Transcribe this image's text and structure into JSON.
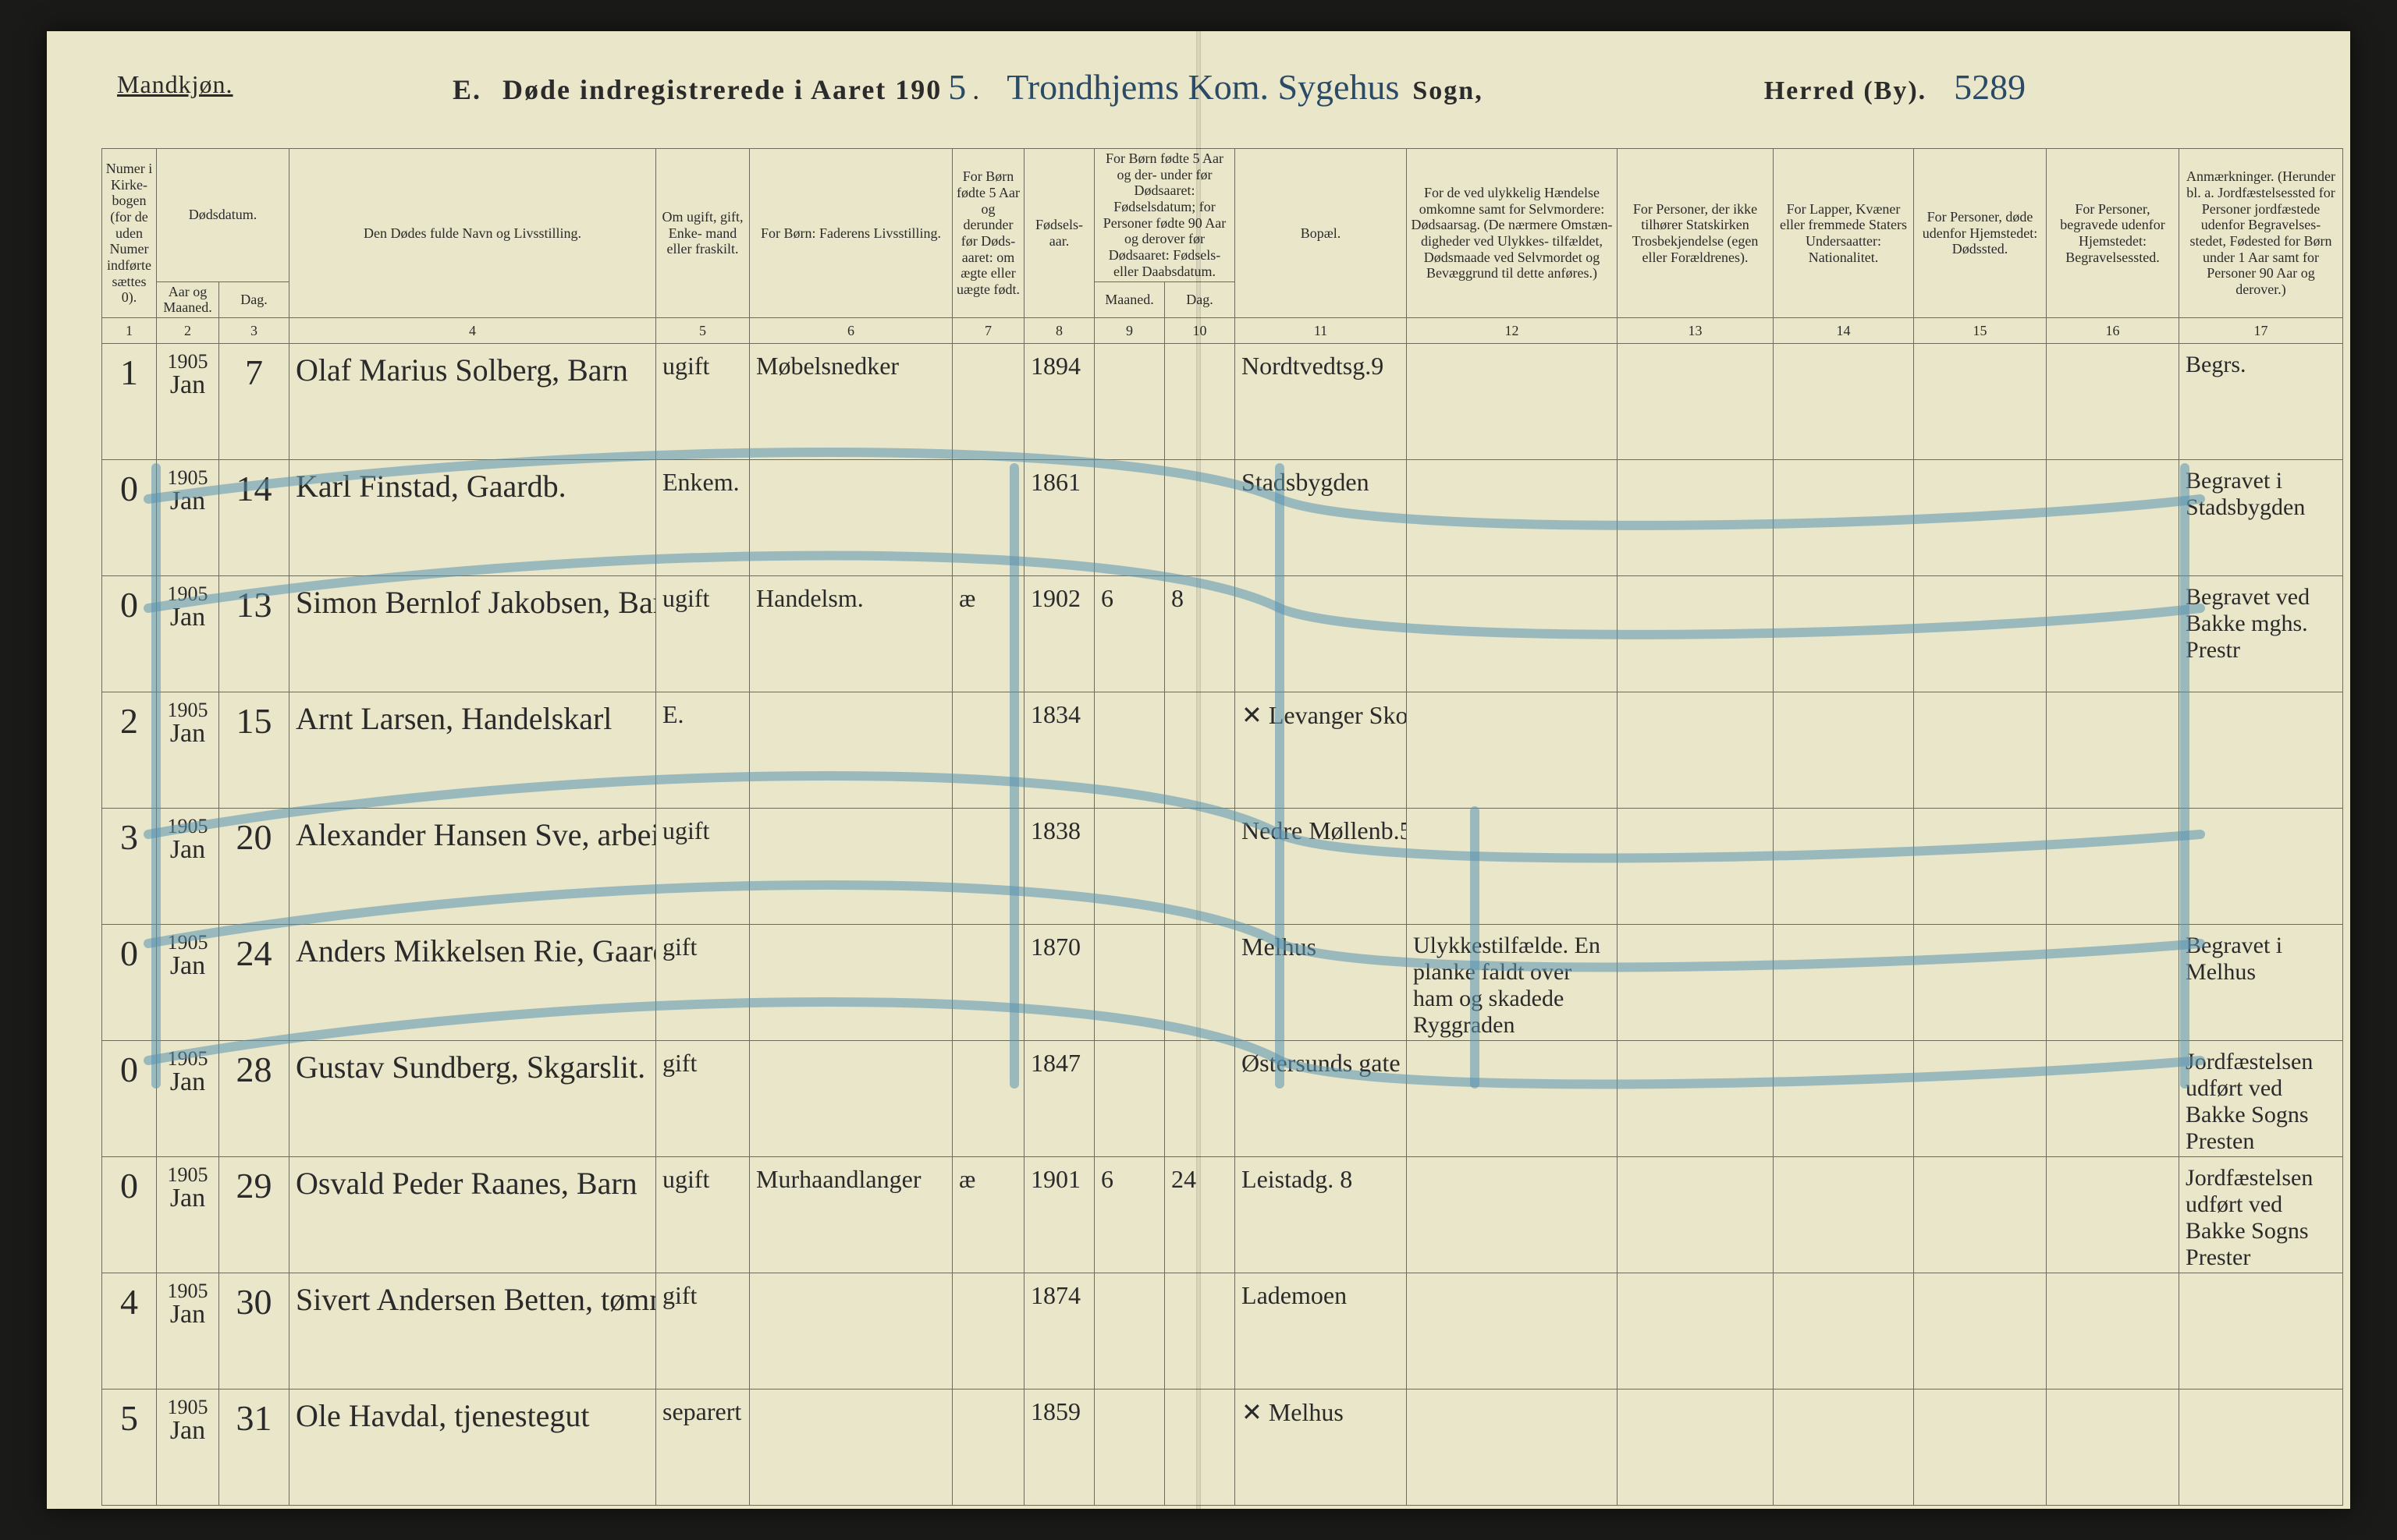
{
  "header": {
    "gender_label": "Mandkjøn.",
    "section_letter": "E.",
    "title_prefix": "Døde indregistrerede i Aaret 190",
    "year_suffix": "5",
    "sogn_handwritten": "Trondhjems Kom. Sygehus",
    "sogn_label": "Sogn,",
    "herred_label": "Herred (By).",
    "herred_handwritten": "5289"
  },
  "columns": {
    "c1": "Numer i Kirke-\nbogen\n(for de\nuden\nNumer\nindførte\nsættes\n0).",
    "c2_group": "Dødsdatum.",
    "c2": "Aar\nog\nMaaned.",
    "c3": "Dag.",
    "c4": "Den Dødes fulde Navn og Livsstilling.",
    "c5": "Om\nugift,\ngift,\nEnke-\nmand\neller\nfraskilt.",
    "c6": "For Børn:\nFaderens Livsstilling.",
    "c7": "For Børn\nfødte\n5 Aar og\nderunder\nfør Døds-\naaret:\nom ægte\neller\nuægte\nfødt.",
    "c8": "Fødsels-\naar.",
    "c9_group": "For Børn fødte\n5 Aar og der-\nunder før\nDødsaaret:\nFødselsdatum;\nfor Personer\nfødte 90 Aar\nog derover før\nDødsaaret:\nFødsels- eller\nDaabsdatum.",
    "c9": "Maaned.",
    "c10": "Dag.",
    "c11": "Bopæl.",
    "c12": "For de ved ulykkelig\nHændelse omkomne\nsamt for Selvmordere:\nDødsaarsag.\n(De nærmere Omstæn-\ndigheder ved Ulykkes-\ntilfældet, Dødsmaade ved\nSelvmordet og Bevæggrund\ntil dette anføres.)",
    "c13": "For Personer,\nder ikke tilhører\nStatskirken\nTrosbekjendelse\n(egen eller Forældrenes).",
    "c14": "For Lapper, Kvæner\neller fremmede\nStaters Undersaatter:\nNationalitet.",
    "c15": "For Personer, døde\nudenfor Hjemstedet:\nDødssted.",
    "c16": "For Personer, begravede\nudenfor Hjemstedet:\nBegravelsessted.",
    "c17": "Anmærkninger.\n(Herunder bl. a.\nJordfæstelsessted for\nPersoner jordfæstede\nudenfor Begravelses-\nstedet, Fødested for\nBørn under 1 Aar\nsamt for Personer\n90 Aar og derover.)"
  },
  "colnums": [
    "1",
    "2",
    "3",
    "4",
    "5",
    "6",
    "7",
    "8",
    "9",
    "10",
    "11",
    "12",
    "13",
    "14",
    "15",
    "16",
    "17"
  ],
  "rows": [
    {
      "num": "1",
      "year": "1905",
      "month": "Jan",
      "day": "7",
      "name": "Olaf Marius Solberg, Barn",
      "status": "ugift",
      "father": "Møbelsnedker",
      "legit": "",
      "birthyear": "1894",
      "bm": "",
      "bd": "",
      "bopael": "Nordtvedtsg.9",
      "cause": "",
      "relig": "",
      "nat": "",
      "deathpl": "",
      "burialpl": "",
      "remarks": "Begrs."
    },
    {
      "num": "0",
      "year": "1905",
      "month": "Jan",
      "day": "14",
      "name": "Karl Finstad, Gaardb.",
      "status": "Enkem.",
      "father": "",
      "legit": "",
      "birthyear": "1861",
      "bm": "",
      "bd": "",
      "bopael": "Stadsbygden",
      "cause": "",
      "relig": "",
      "nat": "",
      "deathpl": "",
      "burialpl": "",
      "remarks": "Begravet i Stadsbygden"
    },
    {
      "num": "0",
      "year": "1905",
      "month": "Jan",
      "day": "13",
      "name": "Simon Bernlof Jakobsen, Barn",
      "status": "ugift",
      "father": "Handelsm.",
      "legit": "æ",
      "birthyear": "1902",
      "bm": "6",
      "bd": "8",
      "bopael": "",
      "cause": "",
      "relig": "",
      "nat": "",
      "deathpl": "",
      "burialpl": "",
      "remarks": "Begravet ved Bakke mghs. Prestr"
    },
    {
      "num": "2",
      "year": "1905",
      "month": "Jan",
      "day": "15",
      "name": "Arnt Larsen, Handelskarl",
      "status": "E.",
      "father": "",
      "legit": "",
      "birthyear": "1834",
      "bm": "",
      "bd": "",
      "bopael": "✕ Levanger  Skogn",
      "cause": "",
      "relig": "",
      "nat": "",
      "deathpl": "",
      "burialpl": "",
      "remarks": ""
    },
    {
      "num": "3",
      "year": "1905",
      "month": "Jan",
      "day": "20",
      "name": "Alexander Hansen Sve, arbeider",
      "status": "ugift",
      "father": "",
      "legit": "",
      "birthyear": "1838",
      "bm": "",
      "bd": "",
      "bopael": "Nedre Møllenb.5",
      "cause": "",
      "relig": "",
      "nat": "",
      "deathpl": "",
      "burialpl": "",
      "remarks": ""
    },
    {
      "num": "0",
      "year": "1905",
      "month": "Jan",
      "day": "24",
      "name": "Anders Mikkelsen Rie, Gaardbruger",
      "status": "gift",
      "father": "",
      "legit": "",
      "birthyear": "1870",
      "bm": "",
      "bd": "",
      "bopael": "Melhus",
      "cause": "Ulykkestilfælde. En planke faldt over ham og skadede Ryggraden",
      "relig": "",
      "nat": "",
      "deathpl": "",
      "burialpl": "",
      "remarks": "Begravet i Melhus"
    },
    {
      "num": "0",
      "year": "1905",
      "month": "Jan",
      "day": "28",
      "name": "Gustav Sundberg, Skgarslit.",
      "status": "gift",
      "father": "",
      "legit": "",
      "birthyear": "1847",
      "bm": "",
      "bd": "",
      "bopael": "Østersunds gate",
      "cause": "",
      "relig": "",
      "nat": "",
      "deathpl": "",
      "burialpl": "",
      "remarks": "Jordfæstelsen udført ved Bakke Sogns Presten"
    },
    {
      "num": "0",
      "year": "1905",
      "month": "Jan",
      "day": "29",
      "name": "Osvald Peder Raanes, Barn",
      "status": "ugift",
      "father": "Murhaandlanger",
      "legit": "æ",
      "birthyear": "1901",
      "bm": "6",
      "bd": "24",
      "bopael": "Leistadg. 8",
      "cause": "",
      "relig": "",
      "nat": "",
      "deathpl": "",
      "burialpl": "",
      "remarks": "Jordfæstelsen udført ved Bakke Sogns Prester"
    },
    {
      "num": "4",
      "year": "1905",
      "month": "Jan",
      "day": "30",
      "name": "Sivert Andersen Betten, tømmermand",
      "status": "gift",
      "father": "",
      "legit": "",
      "birthyear": "1874",
      "bm": "",
      "bd": "",
      "bopael": "Lademoen",
      "cause": "",
      "relig": "",
      "nat": "",
      "deathpl": "",
      "burialpl": "",
      "remarks": ""
    },
    {
      "num": "5",
      "year": "1905",
      "month": "Jan",
      "day": "31",
      "name": "Ole Havdal, tjenestegut",
      "status": "separert",
      "father": "",
      "legit": "",
      "birthyear": "1859",
      "bm": "",
      "bd": "",
      "bopael": "✕ Melhus",
      "cause": "",
      "relig": "",
      "nat": "",
      "deathpl": "",
      "burialpl": "",
      "remarks": ""
    }
  ],
  "annotations": {
    "stroke": "#5a93b0",
    "stroke_width": 12,
    "opacity": 0.55,
    "paths": [
      "M130 600 C700 520, 1400 520, 1580 600 C1700 650, 2400 640, 2760 600",
      "M130 740 C700 650, 1400 650, 1580 740 C1700 790, 2400 780, 2760 740",
      "M130 1030 C700 930, 1400 930, 1580 1030 C1700 1080, 2400 1060, 2760 1030",
      "M130 1170 C700 1070, 1400 1070, 1580 1170 C1700 1220, 2400 1200, 2760 1170",
      "M130 1320 C700 1220, 1400 1220, 1580 1320 C1700 1370, 2400 1350, 2760 1320",
      "M140 560 L140 1350",
      "M1240 560 L1240 1350",
      "M1580 560 L1580 1350",
      "M1830 1000 L1830 1350",
      "M2740 560 L2740 1350"
    ]
  },
  "styling": {
    "page_bg": "#e9e6c9",
    "ink": "#2b2b2b",
    "rule": "#6b6b58",
    "script_ink": "#2a2a2a",
    "title_script_color": "#2a4a66",
    "header_font_size_pt": 14,
    "body_script_size_pt": 30,
    "small_header_size_pt": 12
  }
}
